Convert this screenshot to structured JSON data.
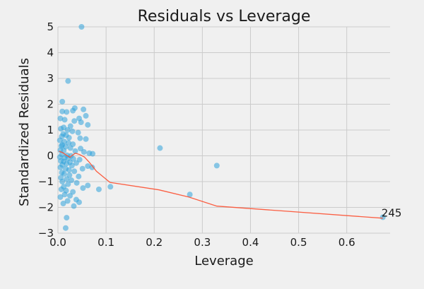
{
  "chart_data": {
    "type": "scatter",
    "title": "Residuals vs Leverage",
    "xlabel": "Leverage",
    "ylabel": "Standardized Residuals",
    "xlim": [
      0.0,
      0.69
    ],
    "ylim": [
      -3,
      5
    ],
    "x_ticks": [
      0.0,
      0.1,
      0.2,
      0.3,
      0.4,
      0.5,
      0.6
    ],
    "x_tick_labels": [
      "0.0",
      "0.1",
      "0.2",
      "0.3",
      "0.4",
      "0.5",
      "0.6"
    ],
    "y_ticks": [
      -3,
      -2,
      -1,
      0,
      1,
      2,
      3,
      4,
      5
    ],
    "y_tick_labels": [
      "−3",
      "−2",
      "−1",
      "0",
      "1",
      "2",
      "3",
      "4",
      "5"
    ],
    "grid": true,
    "series": [
      {
        "name": "Residuals",
        "kind": "scatter",
        "color": "#30a2da",
        "points": [
          [
            0.049,
            5.0
          ],
          [
            0.021,
            2.9
          ],
          [
            0.009,
            2.1
          ],
          [
            0.035,
            1.85
          ],
          [
            0.053,
            1.8
          ],
          [
            0.031,
            1.75
          ],
          [
            0.009,
            1.72
          ],
          [
            0.018,
            1.7
          ],
          [
            0.058,
            1.55
          ],
          [
            0.044,
            1.45
          ],
          [
            0.005,
            1.45
          ],
          [
            0.014,
            1.4
          ],
          [
            0.034,
            1.35
          ],
          [
            0.048,
            1.3
          ],
          [
            0.062,
            1.2
          ],
          [
            0.026,
            1.15
          ],
          [
            0.012,
            1.1
          ],
          [
            0.006,
            1.05
          ],
          [
            0.02,
            1.0
          ],
          [
            0.03,
            0.95
          ],
          [
            0.042,
            0.9
          ],
          [
            0.011,
            0.85
          ],
          [
            0.017,
            0.8
          ],
          [
            0.008,
            0.75
          ],
          [
            0.023,
            0.7
          ],
          [
            0.046,
            0.68
          ],
          [
            0.058,
            0.65
          ],
          [
            0.004,
            0.6
          ],
          [
            0.013,
            0.55
          ],
          [
            0.022,
            0.5
          ],
          [
            0.031,
            0.45
          ],
          [
            0.009,
            0.42
          ],
          [
            0.007,
            0.38
          ],
          [
            0.016,
            0.35
          ],
          [
            0.026,
            0.3
          ],
          [
            0.047,
            0.28
          ],
          [
            0.005,
            0.22
          ],
          [
            0.012,
            0.2
          ],
          [
            0.036,
            0.18
          ],
          [
            0.054,
            0.15
          ],
          [
            0.065,
            0.1
          ],
          [
            0.072,
            0.08
          ],
          [
            0.008,
            0.05
          ],
          [
            0.019,
            0.02
          ],
          [
            0.027,
            0.0
          ],
          [
            0.004,
            -0.05
          ],
          [
            0.014,
            -0.08
          ],
          [
            0.021,
            -0.1
          ],
          [
            0.032,
            -0.12
          ],
          [
            0.045,
            -0.15
          ],
          [
            0.006,
            -0.2
          ],
          [
            0.012,
            -0.22
          ],
          [
            0.025,
            -0.25
          ],
          [
            0.038,
            -0.28
          ],
          [
            0.018,
            -0.3
          ],
          [
            0.009,
            -0.35
          ],
          [
            0.029,
            -0.38
          ],
          [
            0.062,
            -0.4
          ],
          [
            0.071,
            -0.45
          ],
          [
            0.005,
            -0.45
          ],
          [
            0.016,
            -0.5
          ],
          [
            0.023,
            -0.55
          ],
          [
            0.034,
            -0.6
          ],
          [
            0.051,
            -0.5
          ],
          [
            0.008,
            -0.65
          ],
          [
            0.013,
            -0.7
          ],
          [
            0.024,
            -0.75
          ],
          [
            0.043,
            -0.8
          ],
          [
            0.006,
            -0.85
          ],
          [
            0.018,
            -0.9
          ],
          [
            0.028,
            -0.95
          ],
          [
            0.009,
            -1.0
          ],
          [
            0.039,
            -1.05
          ],
          [
            0.021,
            -1.1
          ],
          [
            0.062,
            -1.15
          ],
          [
            0.012,
            -1.2
          ],
          [
            0.052,
            -1.25
          ],
          [
            0.007,
            -1.3
          ],
          [
            0.017,
            -1.35
          ],
          [
            0.031,
            -1.4
          ],
          [
            0.085,
            -1.3
          ],
          [
            0.109,
            -1.2
          ],
          [
            0.212,
            0.3
          ],
          [
            0.33,
            -0.38
          ],
          [
            0.274,
            -1.5
          ],
          [
            0.014,
            -1.5
          ],
          [
            0.025,
            -1.55
          ],
          [
            0.005,
            -1.6
          ],
          [
            0.038,
            -1.7
          ],
          [
            0.02,
            -1.75
          ],
          [
            0.044,
            -1.8
          ],
          [
            0.011,
            -1.85
          ],
          [
            0.033,
            -1.95
          ],
          [
            0.018,
            -2.4
          ],
          [
            0.016,
            -2.8
          ],
          [
            0.675,
            -2.38
          ]
        ]
      },
      {
        "name": "Lowess",
        "kind": "line",
        "color": "#fc4f30",
        "points": [
          [
            0.002,
            0.18
          ],
          [
            0.01,
            0.12
          ],
          [
            0.018,
            0.02
          ],
          [
            0.025,
            -0.06
          ],
          [
            0.03,
            0.02
          ],
          [
            0.036,
            0.1
          ],
          [
            0.045,
            0.05
          ],
          [
            0.055,
            -0.05
          ],
          [
            0.065,
            -0.25
          ],
          [
            0.08,
            -0.6
          ],
          [
            0.108,
            -1.03
          ],
          [
            0.21,
            -1.32
          ],
          [
            0.272,
            -1.6
          ],
          [
            0.33,
            -1.95
          ],
          [
            0.675,
            -2.42
          ]
        ]
      }
    ],
    "annotations": [
      {
        "text": "245",
        "x": 0.675,
        "y": -2.38
      }
    ]
  }
}
